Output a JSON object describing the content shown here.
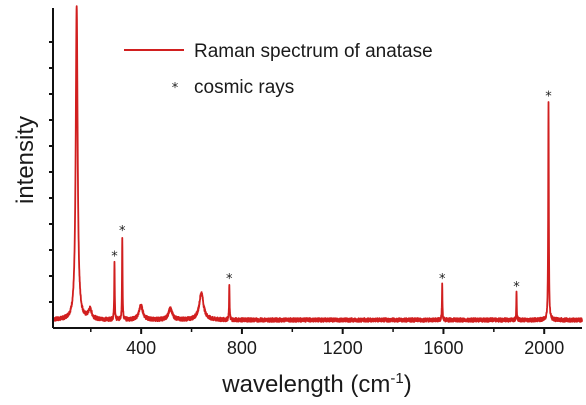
{
  "chart_data": {
    "type": "line",
    "xlabel": "wavelength (cm",
    "xlabel_sup": "-1",
    "xlabel_close": ")",
    "ylabel": "intensity",
    "xlim": [
      50,
      2150
    ],
    "ylim": [
      0,
      1.0
    ],
    "xticks": [
      400,
      800,
      1200,
      1600,
      2000
    ],
    "xtick_labels": [
      "400",
      "800",
      "1200",
      "1600",
      "2000"
    ],
    "y_tick_labels_shown": false,
    "grid": false,
    "legend_position": "top-right",
    "colors": {
      "spectrum": "#d11f1f",
      "axis": "#111111",
      "marker": "#1a1a1a"
    },
    "series": [
      {
        "name": "Raman spectrum of anatase",
        "baseline": 0.025,
        "peaks": [
          {
            "x": 144,
            "height": 0.98,
            "width": 4.5,
            "cosmic_ray": false
          },
          {
            "x": 197,
            "height": 0.03,
            "width": 8,
            "cosmic_ray": false
          },
          {
            "x": 294,
            "height": 0.18,
            "width": 1.2,
            "cosmic_ray": true
          },
          {
            "x": 325,
            "height": 0.26,
            "width": 1.2,
            "cosmic_ray": true
          },
          {
            "x": 399,
            "height": 0.045,
            "width": 9,
            "cosmic_ray": false
          },
          {
            "x": 516,
            "height": 0.035,
            "width": 9,
            "cosmic_ray": false
          },
          {
            "x": 639,
            "height": 0.085,
            "width": 10,
            "cosmic_ray": false
          },
          {
            "x": 750,
            "height": 0.11,
            "width": 1.2,
            "cosmic_ray": true
          },
          {
            "x": 1595,
            "height": 0.11,
            "width": 1.2,
            "cosmic_ray": true
          },
          {
            "x": 1890,
            "height": 0.085,
            "width": 1.2,
            "cosmic_ray": true
          },
          {
            "x": 2017,
            "height": 0.68,
            "width": 1.4,
            "cosmic_ray": true
          }
        ]
      }
    ],
    "legend": [
      {
        "label": "Raman spectrum of anatase",
        "symbol": "line"
      },
      {
        "label": "cosmic rays",
        "symbol": "*"
      }
    ],
    "marker_symbol": "*"
  }
}
